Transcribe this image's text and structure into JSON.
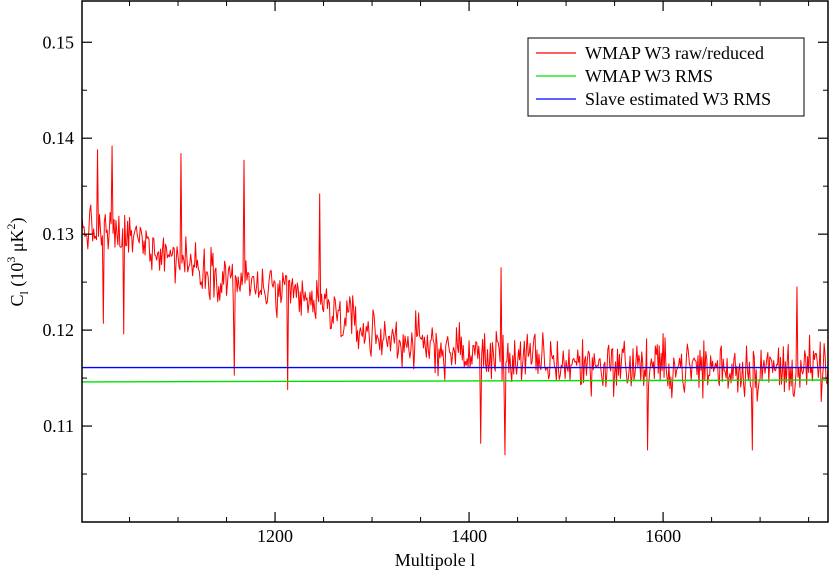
{
  "chart_data": {
    "type": "line",
    "title": "",
    "xlabel": "Multipole l",
    "ylabel": "C",
    "ylabel_sub": "l",
    "ylabel_paren_open": " (10",
    "ylabel_exp": "3",
    "ylabel_unit": " μK",
    "ylabel_unit_exp": "2",
    "ylabel_paren_close": ")",
    "xlim": [
      1001,
      1770
    ],
    "ylim": [
      0.1,
      0.1543
    ],
    "x_ticks": [
      {
        "value": 1200,
        "label": "1200"
      },
      {
        "value": 1400,
        "label": "1400"
      },
      {
        "value": 1600,
        "label": "1600"
      }
    ],
    "y_ticks": [
      {
        "value": 0.11,
        "label": "0.11"
      },
      {
        "value": 0.12,
        "label": "0.12"
      },
      {
        "value": 0.13,
        "label": "0.13"
      },
      {
        "value": 0.14,
        "label": "0.14"
      },
      {
        "value": 0.15,
        "label": "0.15"
      }
    ],
    "x_minor_step": 50,
    "y_minor_step": 0.005,
    "grid": false,
    "legend_position": "top-right",
    "series": [
      {
        "name": "WMAP W3 raw/reduced",
        "color": "#ff0000",
        "noisy": true,
        "trend": [
          [
            1001,
            0.1305
          ],
          [
            1060,
            0.1295
          ],
          [
            1100,
            0.1275
          ],
          [
            1150,
            0.1255
          ],
          [
            1200,
            0.124
          ],
          [
            1250,
            0.1225
          ],
          [
            1300,
            0.1195
          ],
          [
            1350,
            0.1185
          ],
          [
            1400,
            0.1175
          ],
          [
            1500,
            0.1165
          ],
          [
            1600,
            0.1162
          ],
          [
            1700,
            0.116
          ],
          [
            1770,
            0.1158
          ]
        ],
        "noise_amplitude": [
          [
            1001,
            0.0035
          ],
          [
            1300,
            0.004
          ],
          [
            1770,
            0.0045
          ]
        ],
        "peaks": [
          {
            "x": 1017,
            "y": 0.1388
          },
          {
            "x": 1032,
            "y": 0.1392
          },
          {
            "x": 1103,
            "y": 0.1384
          },
          {
            "x": 1246,
            "y": 0.1342
          },
          {
            "x": 1168,
            "y": 0.1377
          },
          {
            "x": 1433,
            "y": 0.1265
          },
          {
            "x": 1738,
            "y": 0.1245
          }
        ],
        "troughs": [
          {
            "x": 1023,
            "y": 0.1207
          },
          {
            "x": 1044,
            "y": 0.1196
          },
          {
            "x": 1158,
            "y": 0.1153
          },
          {
            "x": 1213,
            "y": 0.1138
          },
          {
            "x": 1412,
            "y": 0.1082
          },
          {
            "x": 1437,
            "y": 0.107
          },
          {
            "x": 1584,
            "y": 0.1075
          },
          {
            "x": 1692,
            "y": 0.1075
          }
        ]
      },
      {
        "name": "WMAP W3 RMS",
        "color": "#00e000",
        "noisy": false,
        "trend": [
          [
            1001,
            0.1146
          ],
          [
            1770,
            0.1148
          ]
        ]
      },
      {
        "name": "Slave estimated W3 RMS",
        "color": "#0000ff",
        "noisy": false,
        "trend": [
          [
            1001,
            0.1161
          ],
          [
            1770,
            0.1161
          ]
        ]
      }
    ]
  }
}
